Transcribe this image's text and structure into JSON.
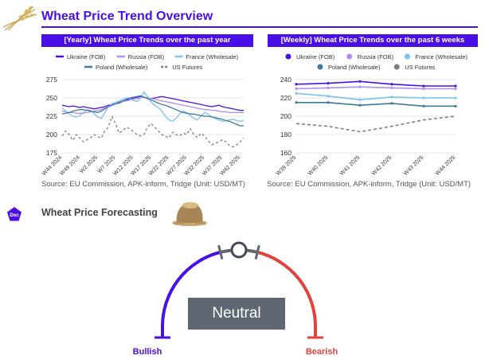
{
  "header": {
    "title": "Wheat Price Trend Overview"
  },
  "forecast": {
    "section_title": "Wheat Price Forecasting",
    "doc_badge": "Doc",
    "status": "Neutral",
    "left_label": "Bullish",
    "right_label": "Bearish",
    "colors": {
      "bullish": "#4a0fe6",
      "bearish": "#e0433c",
      "neutral": "#5f6773"
    }
  },
  "chart_data": [
    {
      "type": "line",
      "title": "[Yearly] Wheat Price Trends over the past year",
      "source": "Source: EU Commission, APK-inform, Tridge  (Unit: USD/MT)",
      "ylim": [
        175,
        275
      ],
      "yticks": [
        175,
        200,
        225,
        250,
        275
      ],
      "tick_labels": [
        "W44 2024",
        "W49 2024",
        "W2 2025",
        "W7 2025",
        "W12 2025",
        "W17 2025",
        "W22 2025",
        "W27 2025",
        "W32 2025",
        "W37 2025",
        "W42 2025"
      ],
      "tick_index": [
        0,
        5,
        10,
        15,
        20,
        25,
        30,
        35,
        40,
        45,
        50
      ],
      "grid": true,
      "series": [
        {
          "name": "Ukraine (FOB)",
          "color": "#4a0fe6",
          "style": "solid",
          "values": [
            240,
            239,
            238,
            239,
            238,
            237,
            238,
            237,
            236,
            235,
            236,
            237,
            238,
            240,
            241,
            242,
            243,
            245,
            247,
            248,
            250,
            251,
            252,
            251,
            250,
            249,
            250,
            251,
            252,
            251,
            250,
            249,
            248,
            247,
            246,
            245,
            244,
            243,
            242,
            241,
            240,
            239,
            238,
            239,
            240,
            238,
            237,
            236,
            235,
            234,
            233,
            233
          ]
        },
        {
          "name": "Russia (FOB)",
          "color": "#b08df0",
          "style": "solid",
          "values": [
            232,
            231,
            230,
            230,
            229,
            229,
            229,
            230,
            231,
            232,
            233,
            234,
            236,
            238,
            240,
            242,
            244,
            245,
            246,
            247,
            248,
            249,
            250,
            251,
            250,
            249,
            248,
            247,
            246,
            245,
            244,
            243,
            242,
            241,
            240,
            239,
            238,
            237,
            236,
            235,
            234,
            234,
            233,
            233,
            232,
            231,
            231,
            230,
            230,
            230,
            230,
            230
          ]
        },
        {
          "name": "France (Wholesale)",
          "color": "#79c3ee",
          "style": "solid",
          "values": [
            236,
            232,
            228,
            225,
            224,
            226,
            230,
            234,
            233,
            228,
            224,
            222,
            230,
            238,
            242,
            244,
            246,
            248,
            250,
            249,
            247,
            245,
            250,
            258,
            252,
            244,
            240,
            237,
            232,
            225,
            220,
            218,
            222,
            228,
            232,
            230,
            226,
            222,
            220,
            225,
            230,
            228,
            224,
            222,
            220,
            218,
            219,
            220,
            221,
            219,
            218,
            219
          ]
        },
        {
          "name": "Poland (Wholesale)",
          "color": "#3f7b9b",
          "style": "solid",
          "values": [
            228,
            229,
            230,
            232,
            233,
            234,
            234,
            233,
            232,
            231,
            230,
            232,
            235,
            238,
            240,
            242,
            244,
            246,
            248,
            250,
            251,
            252,
            253,
            251,
            249,
            247,
            245,
            243,
            241,
            240,
            238,
            236,
            234,
            232,
            230,
            229,
            228,
            228,
            227,
            226,
            225,
            225,
            224,
            223,
            222,
            221,
            219,
            218,
            216,
            214,
            212,
            212
          ]
        },
        {
          "name": "US Futures",
          "color": "#7d7d86",
          "style": "dashed",
          "values": [
            198,
            205,
            200,
            192,
            200,
            195,
            190,
            193,
            196,
            200,
            197,
            195,
            205,
            210,
            225,
            215,
            202,
            205,
            210,
            208,
            204,
            200,
            198,
            200,
            210,
            215,
            210,
            205,
            200,
            198,
            195,
            203,
            200,
            198,
            202,
            200,
            208,
            200,
            196,
            202,
            198,
            192,
            186,
            188,
            190,
            193,
            190,
            185,
            183,
            186,
            190,
            195
          ]
        }
      ]
    },
    {
      "type": "line",
      "title": "[Weekly] Wheat Price Trends over the past 6 weeks",
      "source": "Source: EU Commission, APK-inform, Tridge  (Unit: USD/MT)",
      "ylim": [
        160,
        240
      ],
      "yticks": [
        160,
        180,
        200,
        220,
        240
      ],
      "categories": [
        "W39 2025",
        "W40 2025",
        "W41 2025",
        "W42 2025",
        "W43 2025",
        "W44 2025"
      ],
      "grid": true,
      "series": [
        {
          "name": "Ukraine (FOB)",
          "color": "#4a0fe6",
          "style": "solid",
          "values": [
            235,
            236,
            238,
            235,
            233,
            233
          ]
        },
        {
          "name": "Russia (FOB)",
          "color": "#b08df0",
          "style": "solid",
          "values": [
            230,
            231,
            232,
            231,
            230,
            230
          ]
        },
        {
          "name": "France (Wholesale)",
          "color": "#79c3ee",
          "style": "solid",
          "values": [
            225,
            222,
            218,
            221,
            220,
            220
          ]
        },
        {
          "name": "Poland (Wholesale)",
          "color": "#3f7b9b",
          "style": "solid",
          "values": [
            215,
            215,
            212,
            214,
            211,
            211
          ]
        },
        {
          "name": "US Futures",
          "color": "#7d7d86",
          "style": "dashed",
          "values": [
            192,
            189,
            183,
            189,
            196,
            200
          ]
        }
      ]
    }
  ]
}
